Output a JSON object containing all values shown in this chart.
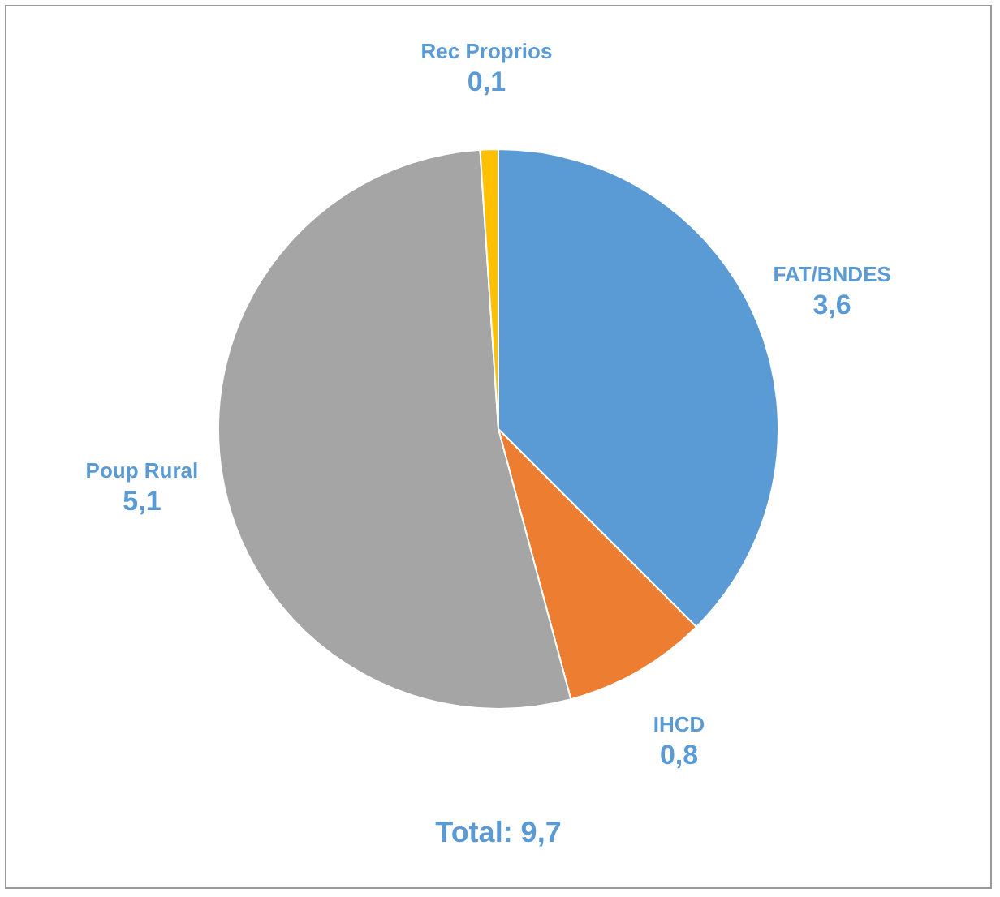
{
  "chart_data": {
    "type": "pie",
    "categories": [
      "FAT/BNDES",
      "IHCD",
      "Poup Rural",
      "Rec Proprios"
    ],
    "values": [
      3.6,
      0.8,
      5.1,
      0.1
    ],
    "colors": [
      "#5b9bd5",
      "#ed7d31",
      "#a5a5a5",
      "#ffc000"
    ],
    "value_labels": [
      "3,6",
      "0,8",
      "5,1",
      "0,1"
    ],
    "annotations": [
      "Total: 9,7"
    ],
    "legend": false
  }
}
